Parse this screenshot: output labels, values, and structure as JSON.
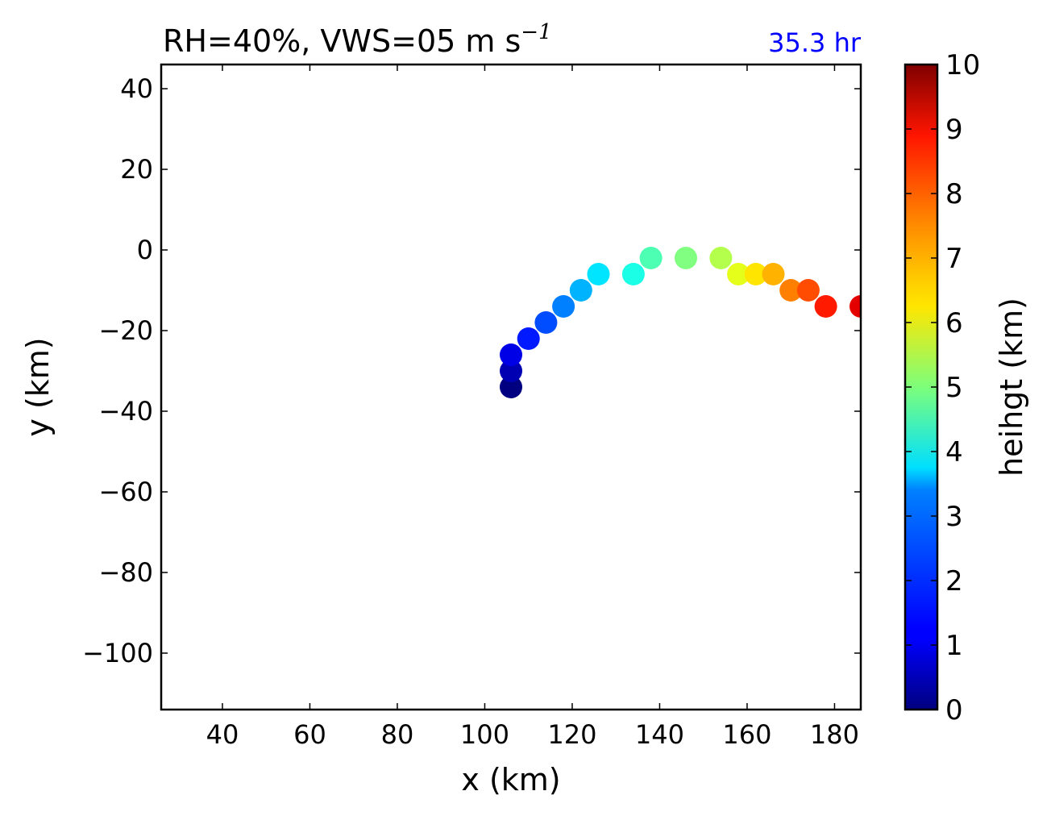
{
  "chart_data": {
    "type": "scatter",
    "title_main": "RH=40%, VWS=05 m s",
    "title_exp": "−1",
    "time_label": "35.3 hr",
    "time_color": "#0000ff",
    "xlabel": "x (km)",
    "ylabel": "y (km)",
    "xlim": [
      26,
      186
    ],
    "ylim": [
      -114,
      46
    ],
    "xticks": [
      40,
      60,
      80,
      100,
      120,
      140,
      160,
      180
    ],
    "xtick_labels": [
      "40",
      "60",
      "80",
      "100",
      "120",
      "140",
      "160",
      "180"
    ],
    "yticks": [
      40,
      20,
      0,
      -20,
      -40,
      -60,
      -80,
      -100
    ],
    "ytick_labels": [
      "40",
      "20",
      "0",
      "−20",
      "−40",
      "−60",
      "−80",
      "−100"
    ],
    "grid": false,
    "colormap": "jet",
    "colorbar": {
      "label": "heihgt (km)",
      "range": [
        0,
        10
      ],
      "ticks": [
        0,
        1,
        2,
        3,
        4,
        5,
        6,
        7,
        8,
        9,
        10
      ],
      "tick_labels": [
        "0",
        "1",
        "2",
        "3",
        "4",
        "5",
        "6",
        "7",
        "8",
        "9",
        "10"
      ]
    },
    "points": [
      {
        "x": 106,
        "y": -34,
        "height": 0.0
      },
      {
        "x": 106,
        "y": -30,
        "height": 0.5
      },
      {
        "x": 106,
        "y": -26,
        "height": 1.0
      },
      {
        "x": 110,
        "y": -22,
        "height": 1.5
      },
      {
        "x": 114,
        "y": -18,
        "height": 2.0
      },
      {
        "x": 118,
        "y": -14,
        "height": 2.5
      },
      {
        "x": 122,
        "y": -10,
        "height": 3.0
      },
      {
        "x": 126,
        "y": -6,
        "height": 3.5
      },
      {
        "x": 134,
        "y": -6,
        "height": 4.0
      },
      {
        "x": 138,
        "y": -2,
        "height": 4.5
      },
      {
        "x": 146,
        "y": -2,
        "height": 5.0
      },
      {
        "x": 154,
        "y": -2,
        "height": 5.5
      },
      {
        "x": 158,
        "y": -6,
        "height": 6.0
      },
      {
        "x": 162,
        "y": -6,
        "height": 6.5
      },
      {
        "x": 166,
        "y": -6,
        "height": 7.0
      },
      {
        "x": 170,
        "y": -10,
        "height": 7.5
      },
      {
        "x": 174,
        "y": -10,
        "height": 8.0
      },
      {
        "x": 178,
        "y": -14,
        "height": 8.5
      },
      {
        "x": 186,
        "y": -14,
        "height": 9.0
      }
    ]
  }
}
